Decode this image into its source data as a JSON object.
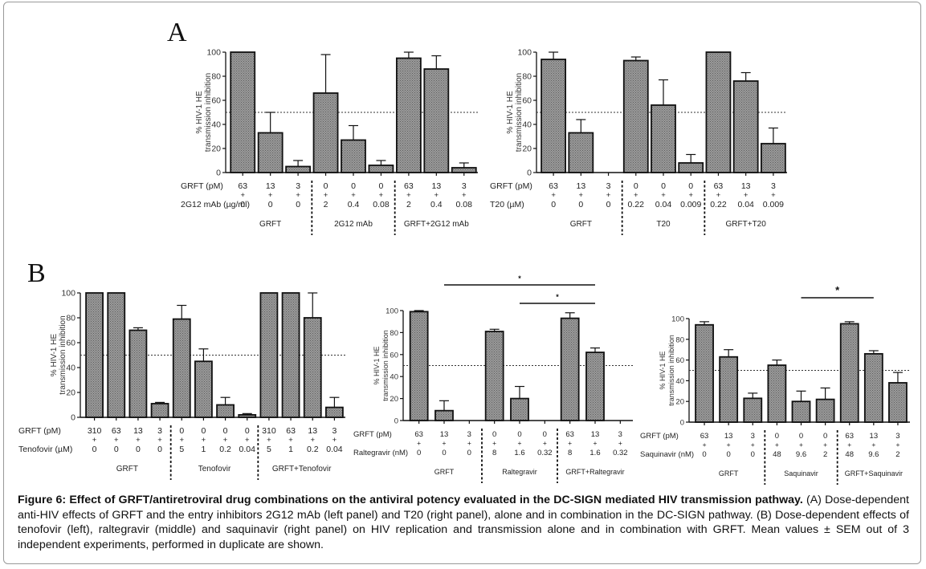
{
  "figure": {
    "panel_labels": [
      "A",
      "B"
    ],
    "caption_bold": "Figure 6: Effect of GRFT/antiretroviral drug combinations on the antiviral potency evaluated in the DC-SIGN mediated HIV transmission pathway.",
    "caption_text": " (A) Dose-dependent anti-HIV effects of GRFT and the entry inhibitors 2G12 mAb (left panel) and T20 (right panel), alone and in combination in the DC-SIGN pathway. (B) Dose-dependent effects of tenofovir (left), raltegravir (middle) and saquinavir (right panel) on HIV replication and transmission alone and in combination with GRFT. Mean values ± SEM out of 3 independent experiments, performed in duplicate are shown."
  },
  "colors": {
    "bar_fill": "#8a8a8a",
    "bar_stroke": "#111111",
    "axis": "#111111",
    "text": "#222222"
  },
  "chart_data": [
    {
      "id": "A-left",
      "type": "bar",
      "ylabel": [
        "% HIV-1 HE",
        "transmission inhibition"
      ],
      "ylim": [
        0,
        100
      ],
      "yticks": [
        0,
        20,
        40,
        60,
        80,
        100
      ],
      "reference_line": 50,
      "row_labels": [
        "GRFT (pM)",
        "2G12 mAb (µg/ml)"
      ],
      "row1": [
        "63",
        "13",
        "3",
        "0",
        "0",
        "0",
        "63",
        "13",
        "3"
      ],
      "row2": [
        "0",
        "0",
        "0",
        "2",
        "0.4",
        "0.08",
        "2",
        "0.4",
        "0.08"
      ],
      "groups": [
        "GRFT",
        "2G12 mAb",
        "GRFT+2G12 mAb"
      ],
      "group_size": 3,
      "values": [
        100,
        33,
        5,
        66,
        27,
        6,
        95,
        86,
        4
      ],
      "errors": [
        0,
        17,
        5,
        32,
        12,
        4,
        5,
        11,
        4
      ],
      "significance": []
    },
    {
      "id": "A-right",
      "type": "bar",
      "ylabel": [
        "% HIV-1 HE",
        "transmission inhibition"
      ],
      "ylim": [
        0,
        100
      ],
      "yticks": [
        0,
        20,
        40,
        60,
        80,
        100
      ],
      "reference_line": 50,
      "row_labels": [
        "GRFT (pM)",
        "T20 (µM)"
      ],
      "row1": [
        "63",
        "13",
        "3",
        "0",
        "0",
        "0",
        "63",
        "13",
        "3"
      ],
      "row2": [
        "0",
        "0",
        "0",
        "0.22",
        "0.04",
        "0.009",
        "0.22",
        "0.04",
        "0.009"
      ],
      "groups": [
        "GRFT",
        "T20",
        "GRFT+T20"
      ],
      "group_size": 3,
      "values": [
        94,
        33,
        0,
        93,
        56,
        8,
        100,
        76,
        24
      ],
      "errors": [
        6,
        11,
        0,
        3,
        21,
        7,
        0,
        7,
        13
      ],
      "significance": []
    },
    {
      "id": "B-left",
      "type": "bar",
      "ylabel": [
        "% HIV-1 HE",
        "transmission inhibition"
      ],
      "ylim": [
        0,
        100
      ],
      "yticks": [
        0,
        20,
        40,
        60,
        80,
        100
      ],
      "reference_line": 50,
      "row_labels": [
        "GRFT (pM)",
        "Tenofovir (µM)"
      ],
      "row1": [
        "310",
        "63",
        "13",
        "3",
        "0",
        "0",
        "0",
        "0",
        "310",
        "63",
        "13",
        "3"
      ],
      "row2": [
        "0",
        "0",
        "0",
        "0",
        "5",
        "1",
        "0.2",
        "0.04",
        "5",
        "1",
        "0.2",
        "0.04"
      ],
      "groups": [
        "GRFT",
        "Tenofovir",
        "GRFT+Tenofovir"
      ],
      "group_size": 4,
      "values": [
        100,
        100,
        70,
        11,
        79,
        45,
        10,
        2,
        100,
        100,
        80,
        8
      ],
      "errors": [
        0,
        0,
        2,
        1,
        11,
        10,
        6,
        1,
        0,
        0,
        20,
        8
      ],
      "significance": []
    },
    {
      "id": "B-middle",
      "type": "bar",
      "ylabel": [
        "% HIV-1 HE",
        "transmission inhibition"
      ],
      "ylim": [
        0,
        100
      ],
      "yticks": [
        0,
        20,
        40,
        60,
        80,
        100
      ],
      "reference_line": 50,
      "row_labels": [
        "GRFT (pM)",
        "Raltegravir (nM)"
      ],
      "row1": [
        "63",
        "13",
        "3",
        "0",
        "0",
        "0",
        "63",
        "13",
        "3"
      ],
      "row2": [
        "0",
        "0",
        "0",
        "8",
        "1.6",
        "0.32",
        "8",
        "1.6",
        "0.32"
      ],
      "groups": [
        "GRFT",
        "Raltegravir",
        "GRFT+Raltegravir"
      ],
      "group_size": 3,
      "values": [
        99,
        9,
        0,
        81,
        20,
        0,
        93,
        62,
        0
      ],
      "errors": [
        1,
        9,
        0,
        2,
        11,
        0,
        5,
        4,
        0
      ],
      "significance": [
        {
          "from_bar": 1,
          "to_bar": 7,
          "label": "*"
        },
        {
          "from_bar": 4,
          "to_bar": 7,
          "label": "*"
        }
      ]
    },
    {
      "id": "B-right",
      "type": "bar",
      "ylabel": [
        "% HIV-1 HE",
        "transmission inhibition"
      ],
      "ylim": [
        0,
        100
      ],
      "yticks": [
        0,
        20,
        40,
        60,
        80,
        100
      ],
      "reference_line": 50,
      "row_labels": [
        "GRFT (pM)",
        "Saquinavir (nM)"
      ],
      "row1": [
        "63",
        "13",
        "3",
        "0",
        "0",
        "0",
        "63",
        "13",
        "3"
      ],
      "row2": [
        "0",
        "0",
        "0",
        "48",
        "9.6",
        "2",
        "48",
        "9.6",
        "2"
      ],
      "groups": [
        "GRFT",
        "Saquinavir",
        "GRFT+Saquinavir"
      ],
      "group_size": 3,
      "values": [
        94,
        63,
        23,
        55,
        20,
        22,
        95,
        66,
        38
      ],
      "errors": [
        3,
        7,
        5,
        5,
        10,
        11,
        2,
        3,
        10
      ],
      "significance": [
        {
          "from_bar": 4,
          "to_bar": 7,
          "label": "*"
        }
      ]
    }
  ]
}
